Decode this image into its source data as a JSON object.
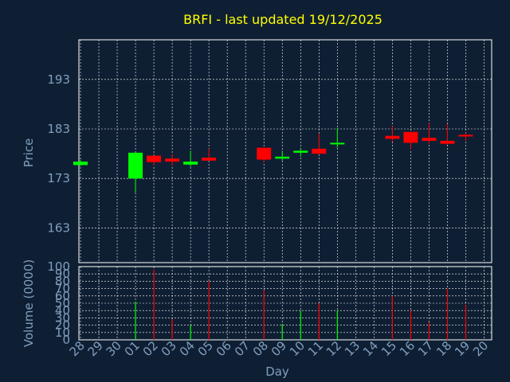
{
  "colors": {
    "background": "#0f1f33",
    "frame": "#ffffff",
    "grid": "#ffffff",
    "text": "#7f9fbf",
    "title": "#ffff00",
    "up": "#00ff00",
    "down": "#ff0000"
  },
  "chart_data": [
    {
      "type": "candlestick",
      "title": "BRFI - last updated 19/12/2025",
      "ylabel": "Price",
      "ylim": [
        163,
        183
      ],
      "yticks": [
        "163",
        "173",
        "183",
        "193"
      ],
      "y_range": [
        156,
        201
      ],
      "x_positions": [
        28,
        29,
        30,
        1,
        2,
        3,
        4,
        5,
        6,
        7,
        8,
        9,
        10,
        11,
        12,
        13,
        14,
        15,
        16,
        17,
        18,
        19,
        20
      ],
      "candles": [
        {
          "day": "28",
          "open": 175.7,
          "high": 176.8,
          "low": 175.5,
          "close": 176.4
        },
        {
          "day": "01",
          "open": 173.0,
          "high": 178.2,
          "low": 170.2,
          "close": 178.2
        },
        {
          "day": "02",
          "open": 177.6,
          "high": 177.6,
          "low": 175.6,
          "close": 176.3
        },
        {
          "day": "03",
          "open": 177.0,
          "high": 177.8,
          "low": 175.6,
          "close": 176.4
        },
        {
          "day": "04",
          "open": 175.8,
          "high": 178.6,
          "low": 175.4,
          "close": 176.4
        },
        {
          "day": "05",
          "open": 177.2,
          "high": 179.0,
          "low": 176.6,
          "close": 176.6
        },
        {
          "day": "08",
          "open": 179.2,
          "high": 179.2,
          "low": 176.2,
          "close": 176.8
        },
        {
          "day": "09",
          "open": 177.0,
          "high": 178.6,
          "low": 176.6,
          "close": 177.4
        },
        {
          "day": "10",
          "open": 178.2,
          "high": 179.2,
          "low": 177.4,
          "close": 178.6
        },
        {
          "day": "11",
          "open": 179.0,
          "high": 182.0,
          "low": 177.8,
          "close": 178.0
        },
        {
          "day": "12",
          "open": 180.0,
          "high": 183.2,
          "low": 179.2,
          "close": 180.2
        },
        {
          "day": "15",
          "open": 181.6,
          "high": 183.6,
          "low": 180.4,
          "close": 181.0
        },
        {
          "day": "16",
          "open": 182.4,
          "high": 182.4,
          "low": 178.8,
          "close": 180.2
        },
        {
          "day": "17",
          "open": 181.2,
          "high": 184.2,
          "low": 180.0,
          "close": 180.6
        },
        {
          "day": "18",
          "open": 180.6,
          "high": 184.0,
          "low": 179.8,
          "close": 180.0
        },
        {
          "day": "19",
          "open": 181.8,
          "high": 182.2,
          "low": 180.6,
          "close": 181.6
        }
      ]
    },
    {
      "type": "bar",
      "ylabel": "Volume (0000)",
      "xlabel": "Day",
      "ylim": [
        0,
        100
      ],
      "yticks": [
        "0",
        "10",
        "20",
        "30",
        "40",
        "50",
        "60",
        "70",
        "80",
        "90",
        "100"
      ],
      "x_positions": [
        28,
        29,
        30,
        1,
        2,
        3,
        4,
        5,
        6,
        7,
        8,
        9,
        10,
        11,
        12,
        13,
        14,
        15,
        16,
        17,
        18,
        19,
        20
      ],
      "x_tick_labels": [
        "28",
        "29",
        "30",
        "01",
        "02",
        "03",
        "04",
        "05",
        "06",
        "07",
        "08",
        "09",
        "10",
        "11",
        "12",
        "13",
        "14",
        "15",
        "16",
        "17",
        "18",
        "19",
        "20"
      ],
      "bars": [
        {
          "day": "28",
          "value": 0,
          "dir": "up"
        },
        {
          "day": "01",
          "value": 52,
          "dir": "up"
        },
        {
          "day": "02",
          "value": 96,
          "dir": "down"
        },
        {
          "day": "03",
          "value": 28,
          "dir": "down"
        },
        {
          "day": "04",
          "value": 20,
          "dir": "up"
        },
        {
          "day": "05",
          "value": 80,
          "dir": "down"
        },
        {
          "day": "08",
          "value": 68,
          "dir": "down"
        },
        {
          "day": "09",
          "value": 22,
          "dir": "up"
        },
        {
          "day": "10",
          "value": 40,
          "dir": "up"
        },
        {
          "day": "11",
          "value": 50,
          "dir": "down"
        },
        {
          "day": "12",
          "value": 40,
          "dir": "up"
        },
        {
          "day": "15",
          "value": 60,
          "dir": "down"
        },
        {
          "day": "16",
          "value": 40,
          "dir": "down"
        },
        {
          "day": "17",
          "value": 24,
          "dir": "down"
        },
        {
          "day": "18",
          "value": 70,
          "dir": "down"
        },
        {
          "day": "19",
          "value": 48,
          "dir": "down"
        }
      ]
    }
  ]
}
